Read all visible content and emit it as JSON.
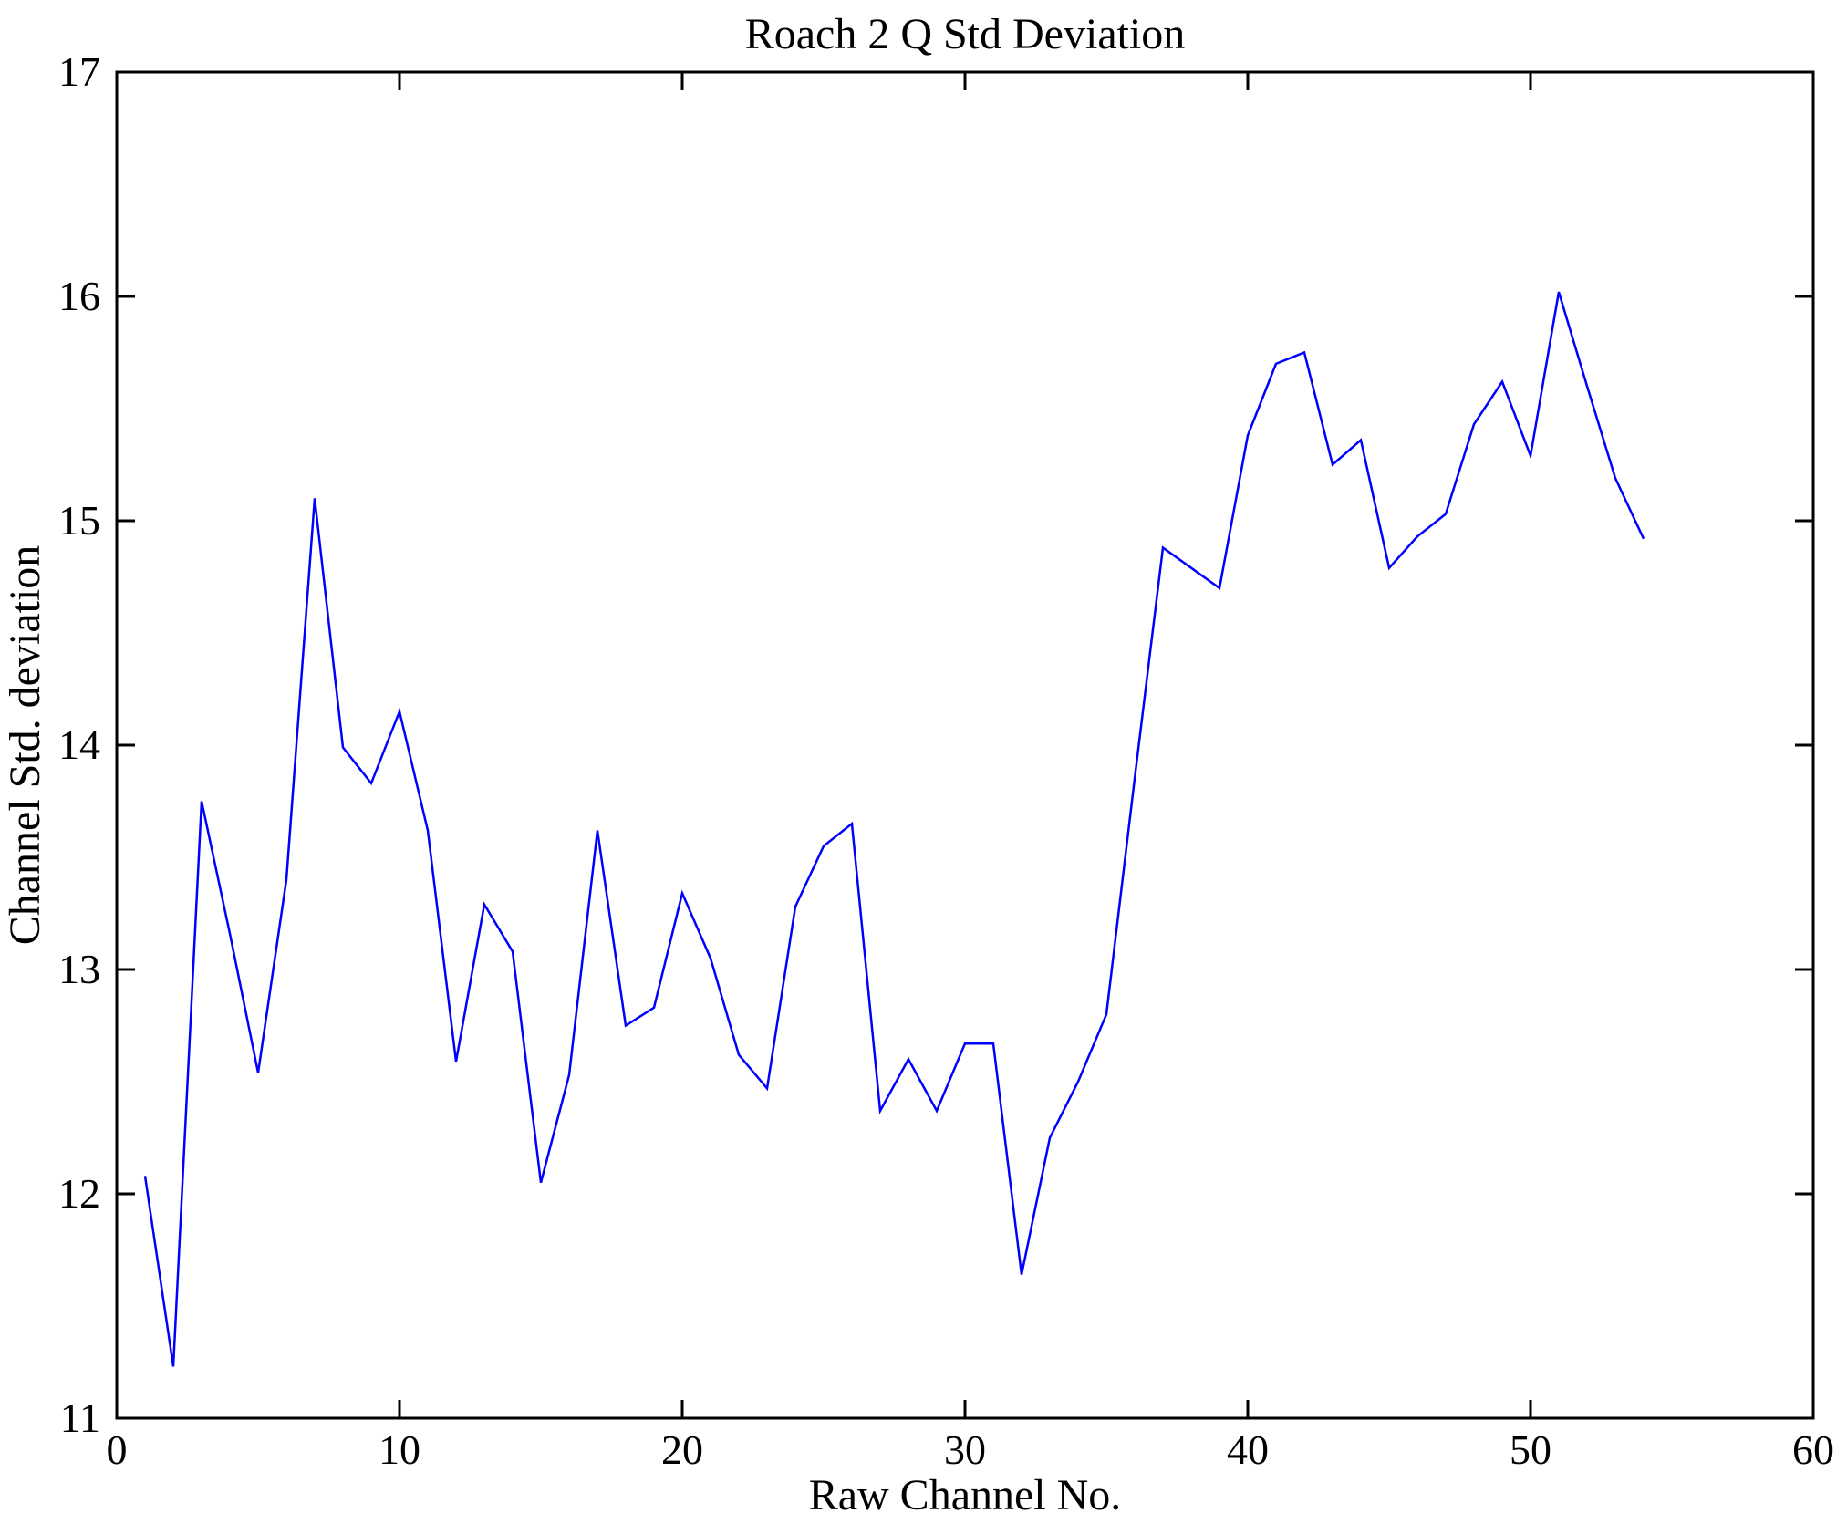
{
  "title": "Roach 2 Q Std Deviation",
  "chart_data": {
    "type": "line",
    "title": "Roach 2 Q Std Deviation",
    "xlabel": "Raw Channel No.",
    "ylabel": "Channel Std. deviation",
    "xlim": [
      0,
      60
    ],
    "ylim": [
      11,
      17
    ],
    "xticks": [
      0,
      10,
      20,
      30,
      40,
      50,
      60
    ],
    "yticks": [
      11,
      12,
      13,
      14,
      15,
      16,
      17
    ],
    "grid": false,
    "legend_position": "none",
    "line_color": "#0000FF",
    "axis_color": "#000000",
    "background_color": "#FFFFFF",
    "series": [
      {
        "name": "Channel Std. deviation",
        "x": [
          1,
          2,
          3,
          4,
          5,
          6,
          7,
          8,
          9,
          10,
          11,
          12,
          13,
          14,
          15,
          16,
          17,
          18,
          19,
          20,
          21,
          22,
          23,
          24,
          25,
          26,
          27,
          28,
          29,
          30,
          31,
          32,
          33,
          34,
          35,
          36,
          37,
          38,
          39,
          40,
          41,
          42,
          43,
          44,
          45,
          46,
          47,
          48,
          49,
          50,
          51,
          52,
          53,
          54
        ],
        "values": [
          12.08,
          11.23,
          13.75,
          13.16,
          12.54,
          13.4,
          15.1,
          13.99,
          13.83,
          14.15,
          13.62,
          12.59,
          13.29,
          13.08,
          12.05,
          12.53,
          13.62,
          12.75,
          12.83,
          13.34,
          13.05,
          12.62,
          12.47,
          13.28,
          13.55,
          13.65,
          12.37,
          12.6,
          12.37,
          12.67,
          12.67,
          11.64,
          12.25,
          12.5,
          12.8,
          13.85,
          14.88,
          14.79,
          14.7,
          15.38,
          15.7,
          15.75,
          15.25,
          15.36,
          14.79,
          14.93,
          15.03,
          15.43,
          15.62,
          15.29,
          16.02,
          15.6,
          15.19,
          14.92
        ]
      }
    ]
  }
}
